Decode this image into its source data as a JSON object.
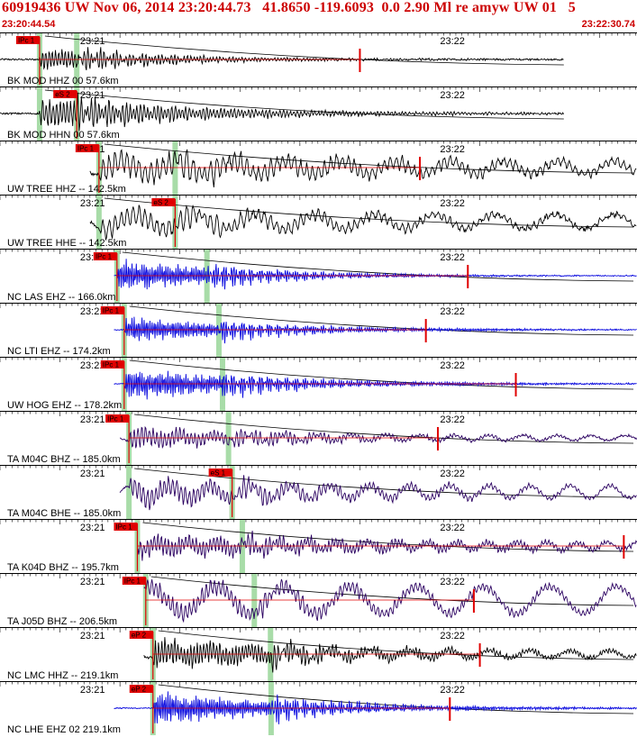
{
  "header": {
    "title": "60919436 UW Nov 06, 2014 23:20:44.73   41.8650 -119.6093  0.0 2.90 Ml re amyw UW 01   5",
    "start_time": "23:20:44.54",
    "end_time": "23:22:30.74"
  },
  "colors": {
    "header_text": "#cc0000",
    "pick": "#e00000",
    "green_band": "#a8dca8",
    "trace_black": "#000000",
    "trace_blue": "#0000dd",
    "trace_navy": "#2a0060",
    "moveout_curve": "#000000"
  },
  "chart_data": {
    "type": "line",
    "description_of_axes": "time axis in seconds after 23:20:44.54",
    "time_range": [
      0,
      106.2
    ],
    "minute_ticks": [
      {
        "label": "23:21",
        "t": 15.46
      },
      {
        "label": "23:22",
        "t": 75.46
      }
    ],
    "traces": [
      {
        "label": "BK MOD HHZ 00 57.6km",
        "color": "black",
        "t_start": 0,
        "t_end": 94,
        "p": 6.6,
        "s": 12.8,
        "pick": "IPc 1",
        "pick_t": 6.6,
        "noise": 2,
        "eq": 12,
        "freq": 1.3,
        "decay": 0.05,
        "spike": 60
      },
      {
        "label": "BK MOD HHN 00 57.6km",
        "color": "black",
        "t_start": 0,
        "t_end": 94,
        "p": 6.6,
        "s": 12.8,
        "pick": "eS 2",
        "pick_t": 12.8,
        "noise": 2,
        "eq": 15,
        "freq": 1.2,
        "decay": 0.035
      },
      {
        "label": "UW TREE HHZ -- 142.5km",
        "color": "black",
        "t_start": 15,
        "t_end": 109,
        "p": 16.5,
        "s": 29.2,
        "pick": "IPc 1",
        "pick_t": 16.5,
        "noise": 4,
        "eq": 14,
        "freq": 0.7,
        "decay": 0.015,
        "wave": 7,
        "wavef": 0.22,
        "spike": 70
      },
      {
        "label": "UW TREE HHE -- 142.5km",
        "color": "black",
        "t_start": 15,
        "t_end": 109,
        "p": 16.5,
        "s": 29.2,
        "pick": "eS 2",
        "pick_t": 29.2,
        "noise": 4,
        "eq": 12,
        "freq": 0.7,
        "decay": 0.02,
        "wave": 8,
        "wavef": 0.2
      },
      {
        "label": "NC LAS EHZ -- 166.0km",
        "color": "blue",
        "t_start": 19,
        "t_end": 113,
        "p": 19.5,
        "s": 34.5,
        "pick": "IPc 1",
        "pick_t": 19.5,
        "noise": 1,
        "eq": 17,
        "freq": 2.1,
        "decay": 0.05,
        "spike": 78
      },
      {
        "label": "NC LTI EHZ -- 174.2km",
        "color": "blue",
        "t_start": 19,
        "t_end": 114,
        "p": 20.7,
        "s": 36.5,
        "pick": "IPc 1",
        "pick_t": 20.7,
        "noise": 1,
        "eq": 13,
        "freq": 2.1,
        "decay": 0.04,
        "spike": 71
      },
      {
        "label": "UW HOG EHZ -- 178.2km",
        "color": "blue",
        "t_start": 19,
        "t_end": 114,
        "p": 20.7,
        "s": 37.1,
        "pick": "IPc 1",
        "pick_t": 20.7,
        "noise": 1,
        "eq": 16,
        "freq": 2.1,
        "decay": 0.04,
        "spike": 86
      },
      {
        "label": "TA M04C BHZ -- 185.0km",
        "color": "navy",
        "t_start": 20,
        "t_end": 114,
        "p": 21.5,
        "s": 38.1,
        "pick": "IPc 1",
        "pick_t": 21.5,
        "noise": 2,
        "eq": 11,
        "freq": 1.1,
        "decay": 0.035,
        "wave": 3,
        "wavef": 0.35,
        "spike": 73
      },
      {
        "label": "TA M04C BHE -- 185.0km",
        "color": "navy",
        "t_start": 20,
        "t_end": 114,
        "p": 21.5,
        "s": 38.7,
        "pick": "eS 1",
        "pick_t": 38.7,
        "noise": 2,
        "eq": 12,
        "freq": 1.0,
        "decay": 0.025,
        "wave": 7,
        "wavef": 0.3
      },
      {
        "label": "TA K04D BHZ -- 195.7km",
        "color": "navy",
        "t_start": 23,
        "t_end": 117,
        "p": 22.9,
        "s": 40.4,
        "pick": "IPc 1",
        "pick_t": 22.9,
        "noise": 3,
        "eq": 11,
        "freq": 1.2,
        "decay": 0.02,
        "wave": 4,
        "wavef": 0.4,
        "spike": 104
      },
      {
        "label": "TA J05D BHZ -- 206.5km",
        "color": "navy",
        "t_start": 24,
        "t_end": 118,
        "p": 24.3,
        "s": 42.4,
        "pick": "IPc 1",
        "pick_t": 24.3,
        "noise": 2,
        "eq": 10,
        "freq": 1.0,
        "decay": 0.015,
        "wave": 15,
        "wavef": 0.18,
        "spike": 79
      },
      {
        "label": "NC LMC HHZ -- 219.1km",
        "color": "black",
        "t_start": 24,
        "t_end": 118,
        "p": 25.5,
        "s": 45.1,
        "pick": "eP 2",
        "pick_t": 25.5,
        "noise": 3,
        "eq": 15,
        "freq": 1.3,
        "decay": 0.03,
        "wave": 4,
        "wavef": 0.3,
        "spike": 80
      },
      {
        "label": "NC LHE EHZ 02 219.1km",
        "color": "blue",
        "t_start": 19,
        "t_end": 114,
        "p": 25.5,
        "s": 45.2,
        "pick": "eP 2",
        "pick_t": 25.5,
        "noise": 1,
        "eq": 17,
        "freq": 2.1,
        "decay": 0.04,
        "spike": 75
      }
    ]
  }
}
